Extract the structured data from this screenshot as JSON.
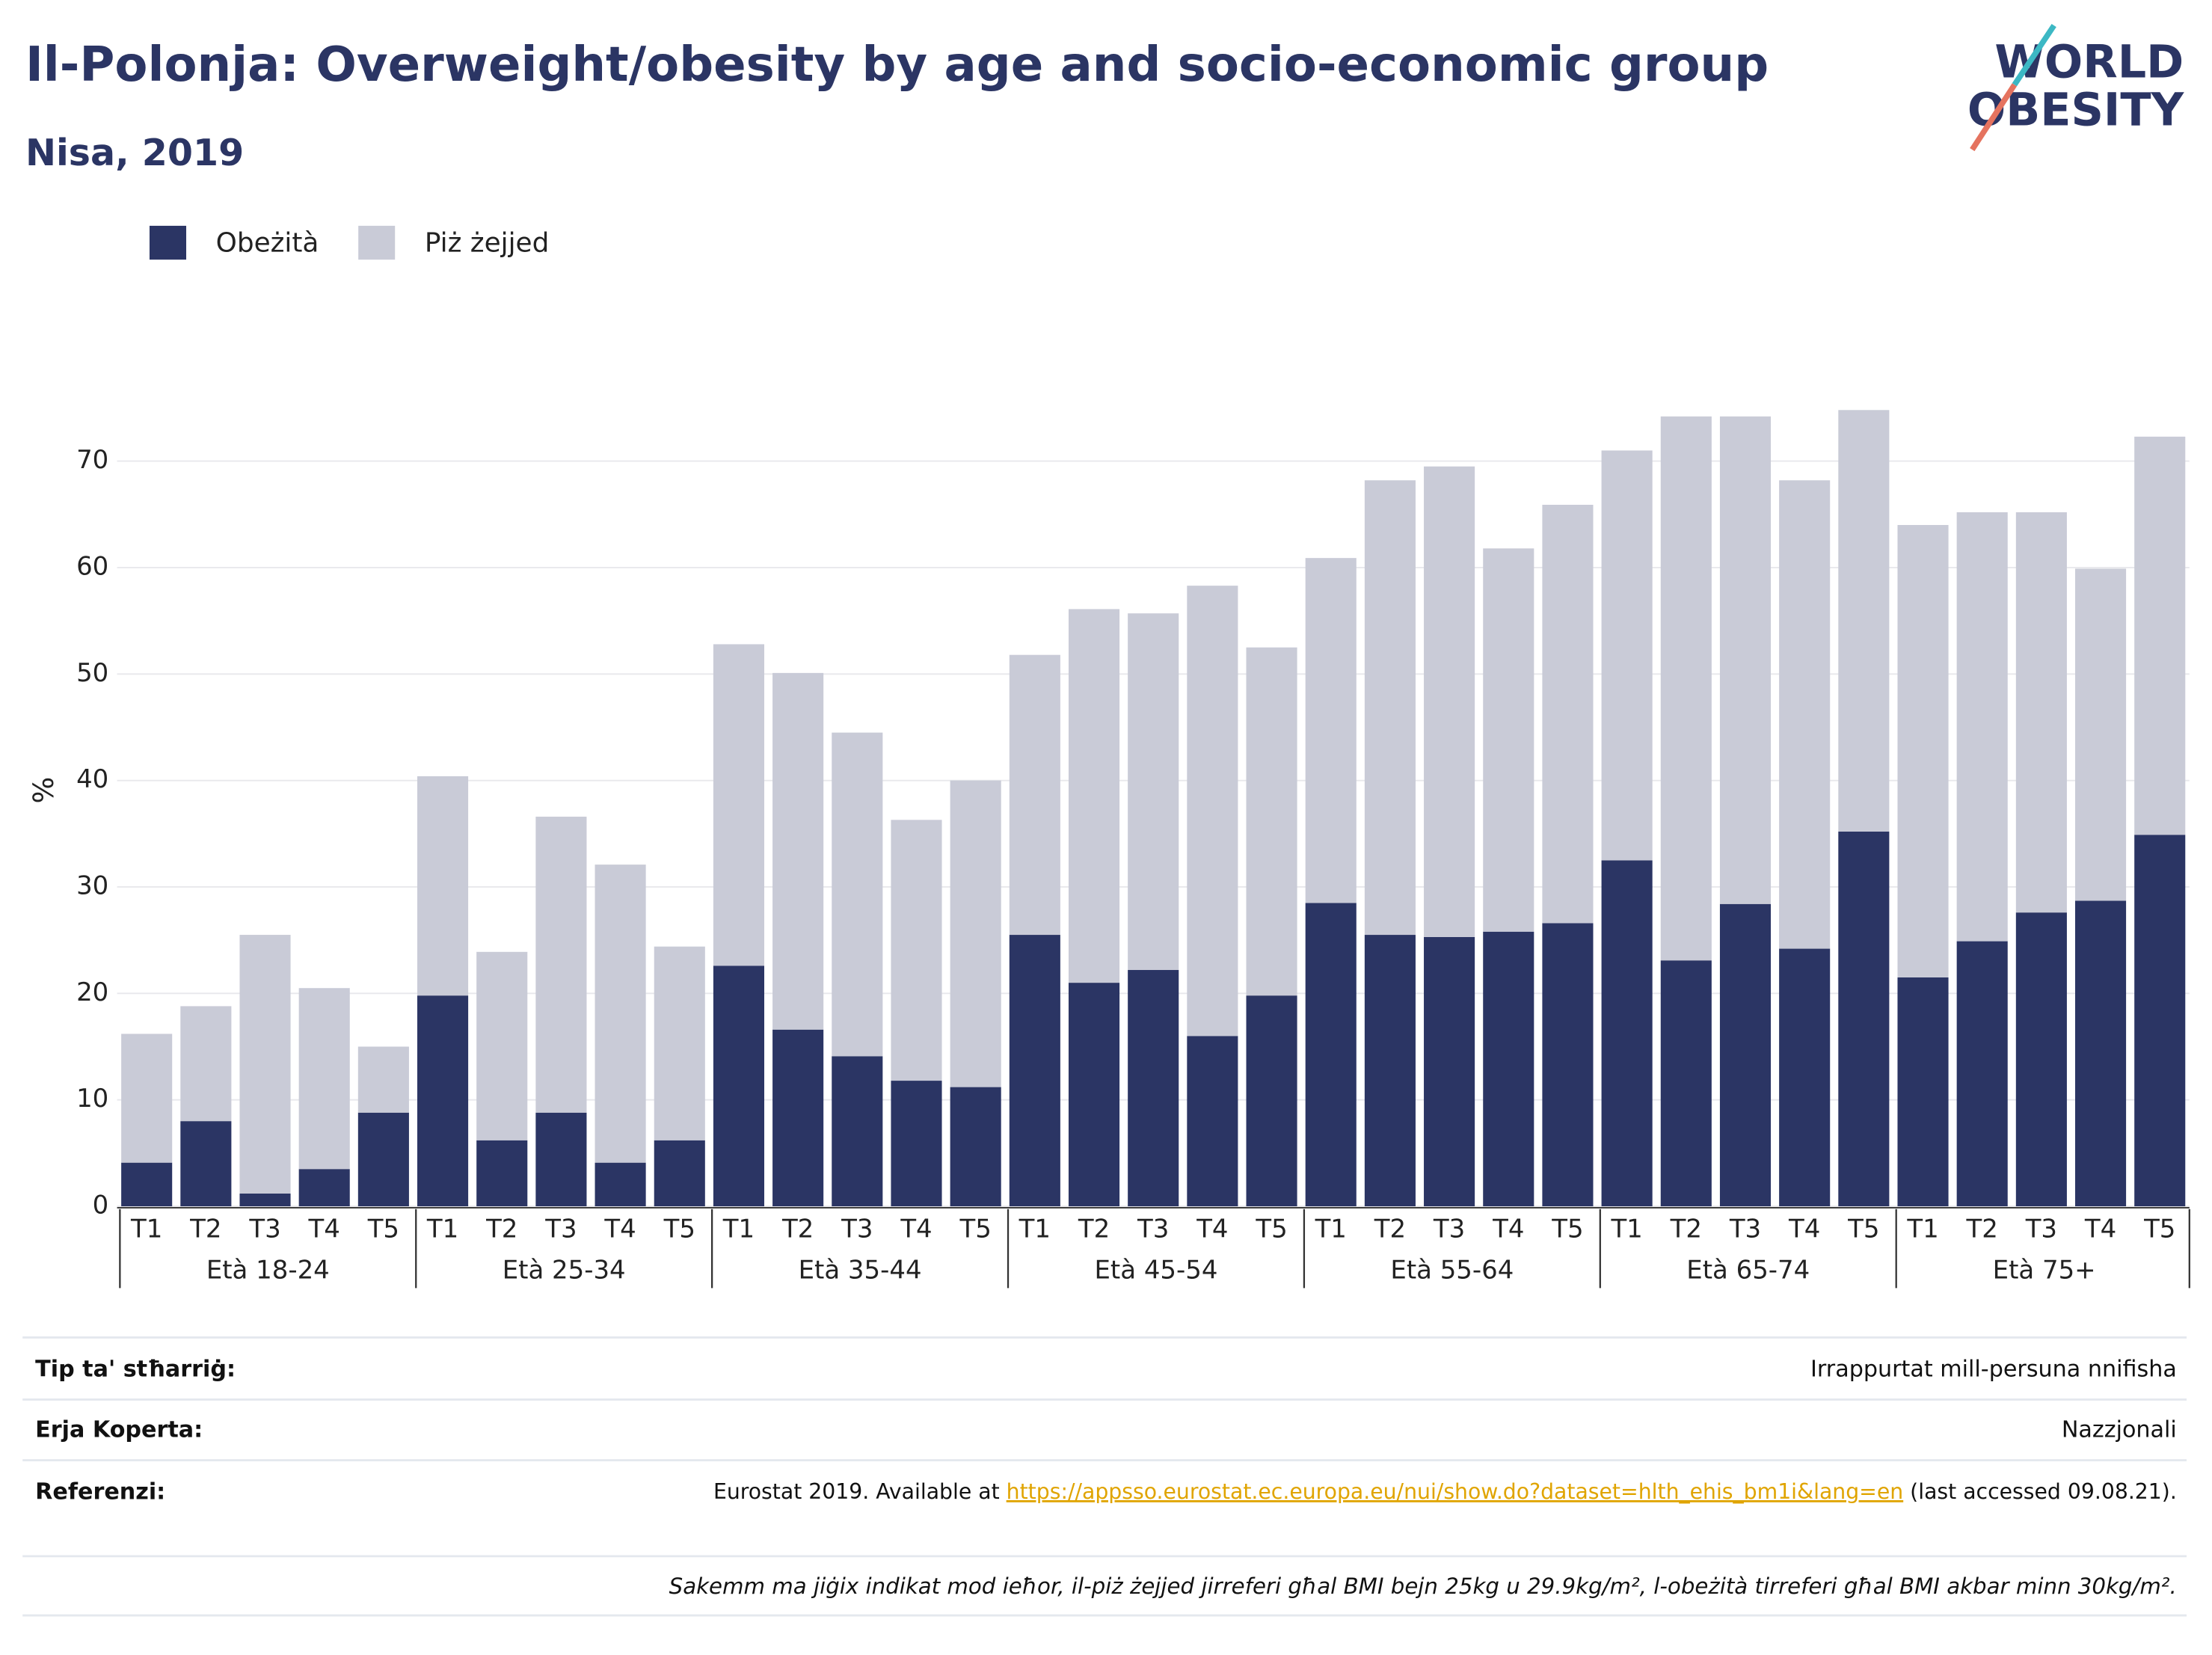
{
  "chart_data": {
    "type": "stacked_bar",
    "title": "Il-Polonja: Overweight/obesity by age and socio-economic group",
    "subtitle": "Nisa, 2019",
    "y_label": "%",
    "logo": [
      "WORLD",
      "OBESITY"
    ],
    "categories": [
      "T1",
      "T2",
      "T3",
      "T4",
      "T5",
      "T1",
      "T2",
      "T3",
      "T4",
      "T5",
      "T1",
      "T2",
      "T3",
      "T4",
      "T5",
      "T1",
      "T2",
      "T3",
      "T4",
      "T5",
      "T1",
      "T2",
      "T3",
      "T4",
      "T5",
      "T1",
      "T2",
      "T3",
      "T4",
      "T5",
      "T1",
      "T2",
      "T3",
      "T4",
      "T5"
    ],
    "groups": [
      "Età 18-24",
      "Età 25-34",
      "Età 35-44",
      "Età 45-54",
      "Età 55-64",
      "Età 65-74",
      "Età 75+"
    ],
    "series": [
      {
        "name": "Obeżità",
        "color": "#2b3564",
        "values": [
          4.1,
          8.0,
          1.2,
          3.5,
          8.8,
          19.8,
          6.2,
          8.8,
          4.1,
          6.2,
          22.6,
          16.6,
          14.1,
          11.8,
          11.2,
          25.5,
          21.0,
          22.2,
          16.0,
          19.8,
          28.5,
          25.5,
          25.3,
          25.8,
          26.6,
          32.5,
          23.1,
          28.4,
          24.2,
          35.2,
          21.5,
          24.9,
          27.6,
          28.7,
          34.9
        ]
      },
      {
        "name": "Piż żejjed",
        "color": "#c9cbd7",
        "values": [
          12.1,
          10.8,
          24.3,
          17.0,
          6.2,
          20.6,
          17.7,
          27.8,
          28.0,
          18.2,
          30.2,
          33.5,
          30.4,
          24.5,
          28.8,
          26.3,
          35.1,
          33.5,
          42.3,
          32.7,
          32.4,
          42.7,
          44.2,
          36.0,
          39.3,
          38.5,
          51.1,
          45.8,
          44.0,
          39.6,
          42.5,
          40.3,
          37.6,
          31.2,
          37.4
        ]
      }
    ],
    "ylim": [
      0,
      77
    ],
    "yticks": [
      0,
      10,
      20,
      30,
      40,
      50,
      60,
      70
    ],
    "grid": true,
    "legend": "top-left"
  },
  "footer": {
    "type_label": "Tip ta' stħarriġ:",
    "type_value": "Irrappurtat mill-persuna nnifisha",
    "area_label": "Erja Koperta:",
    "area_value": "Nazzjonali",
    "ref_label": "Referenzi:",
    "ref_pre": "Eurostat 2019. Available at ",
    "ref_link": "https://appsso.eurostat.ec.europa.eu/nui/show.do?dataset=hlth_ehis_bm1i&lang=en",
    "ref_post": " (last accessed 09.08.21).",
    "note": "Sakemm ma jiġix indikat mod ieħor, il-piż żejjed jirreferi għal BMI bejn 25kg u 29.9kg/m², l-obeżità tirreferi għal BMI akbar minn 30kg/m²."
  }
}
